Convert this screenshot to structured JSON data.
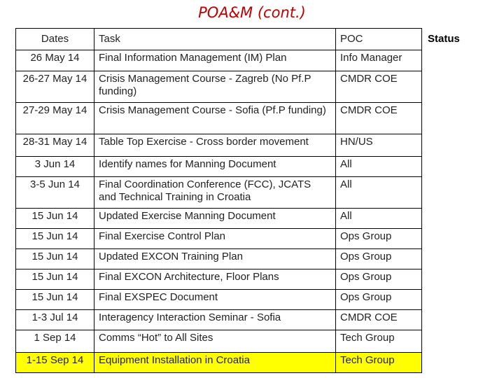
{
  "title": "POA&M (cont.)",
  "columns": {
    "dates": "Dates",
    "task": "Task",
    "poc": "POC",
    "status": "Status"
  },
  "rows": [
    {
      "date": "26 May 14",
      "task": "Final Information Management (IM) Plan",
      "poc": "Info Manager",
      "status": ""
    },
    {
      "date": "26-27 May 14",
      "task": "Crisis Management Course  - Zagreb (No Pf.P funding)",
      "poc": "CMDR COE",
      "status": ""
    },
    {
      "date": "27-29 May 14",
      "task": "Crisis Management Course  - Sofia (Pf.P funding)",
      "poc": "CMDR COE",
      "status": ""
    },
    {
      "date": "28-31 May 14",
      "task": "Table Top Exercise  - Cross border movement",
      "poc": "HN/US",
      "status": ""
    },
    {
      "date": "3 Jun 14",
      "task": "Identify names for Manning Document",
      "poc": "All",
      "status": ""
    },
    {
      "date": "3-5 Jun 14",
      "task": "Final Coordination Conference (FCC), JCATS and Technical Training in Croatia",
      "poc": "All",
      "status": ""
    },
    {
      "date": "15 Jun 14",
      "task": "Updated Exercise Manning Document",
      "poc": "All",
      "status": ""
    },
    {
      "date": "15 Jun 14",
      "task": "Final Exercise Control Plan",
      "poc": "Ops Group",
      "status": ""
    },
    {
      "date": "15 Jun 14",
      "task": "Updated EXCON Training Plan",
      "poc": "Ops Group",
      "status": ""
    },
    {
      "date": "15 Jun 14",
      "task": "Final EXCON Architecture, Floor Plans",
      "poc": "Ops Group",
      "status": ""
    },
    {
      "date": "15 Jun 14",
      "task": "Final EXSPEC Document",
      "poc": "Ops Group",
      "status": ""
    },
    {
      "date": "1-3 Jul 14",
      "task": "Interagency Interaction Seminar - Sofia",
      "poc": "CMDR COE",
      "status": ""
    },
    {
      "date": "1 Sep 14",
      "task": "Comms “Hot” to All Sites",
      "poc": "Tech Group",
      "status": ""
    },
    {
      "date": "1-15 Sep 14",
      "task": "Equipment Installation in Croatia",
      "poc": "Tech Group",
      "status": "",
      "highlight": true
    }
  ],
  "colors": {
    "title": "#c00000",
    "highlight": "#ffff00"
  }
}
